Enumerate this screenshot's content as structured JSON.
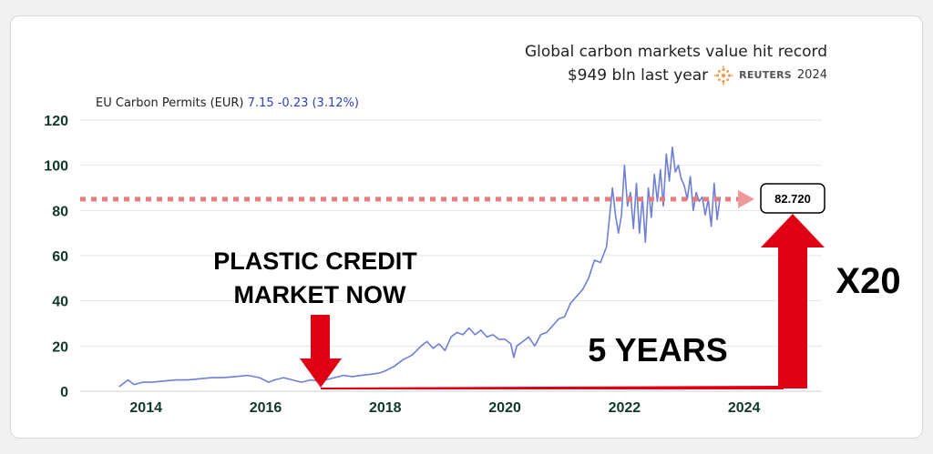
{
  "headline": {
    "line1": "Global carbon markets value hit record",
    "line2": "$949 bln last year",
    "source_brand": "REUTERS",
    "source_year": "2024"
  },
  "ticker": {
    "label": "EU Carbon Permits (EUR)",
    "quote": "7.15 -0.23 (3.12%)"
  },
  "callout": {
    "line1": "PLASTIC CREDIT",
    "line2": "MARKET NOW",
    "years": "5 YEARS",
    "multiplier": "X20",
    "value_box": "82.720"
  },
  "colors": {
    "line": "#6f7fd6",
    "dotted_ref": "#e87c7c",
    "arrow_red": "#e00013",
    "axis_text": "#103a27",
    "grid": "#e6e6e6"
  },
  "chart_data": {
    "type": "line",
    "x_ticks": [
      2014,
      2016,
      2018,
      2020,
      2022,
      2024
    ],
    "y_ticks": [
      0,
      20,
      40,
      60,
      80,
      100,
      120
    ],
    "xlim": [
      2012.9,
      2025.3
    ],
    "ylim": [
      0,
      120
    ],
    "grid": true,
    "reference_line": 85,
    "series": [
      {
        "name": "EU Carbon Permits (EUR)",
        "x": [
          2013.55,
          2013.7,
          2013.8,
          2013.95,
          2014.1,
          2014.3,
          2014.5,
          2014.7,
          2014.9,
          2015.1,
          2015.3,
          2015.5,
          2015.7,
          2015.9,
          2016.05,
          2016.15,
          2016.3,
          2016.45,
          2016.6,
          2016.75,
          2016.9,
          2017.0,
          2017.15,
          2017.3,
          2017.45,
          2017.6,
          2017.75,
          2017.9,
          2018.0,
          2018.15,
          2018.3,
          2018.45,
          2018.6,
          2018.7,
          2018.8,
          2018.9,
          2019.0,
          2019.1,
          2019.2,
          2019.3,
          2019.4,
          2019.5,
          2019.6,
          2019.7,
          2019.8,
          2019.9,
          2020.0,
          2020.1,
          2020.15,
          2020.2,
          2020.3,
          2020.4,
          2020.5,
          2020.6,
          2020.7,
          2020.8,
          2020.9,
          2021.0,
          2021.1,
          2021.2,
          2021.3,
          2021.4,
          2021.5,
          2021.6,
          2021.7,
          2021.8,
          2021.85,
          2021.9,
          2021.95,
          2022.0,
          2022.05,
          2022.1,
          2022.15,
          2022.2,
          2022.25,
          2022.3,
          2022.35,
          2022.4,
          2022.45,
          2022.5,
          2022.55,
          2022.6,
          2022.65,
          2022.7,
          2022.75,
          2022.8,
          2022.85,
          2022.9,
          2022.95,
          2023.0,
          2023.05,
          2023.1,
          2023.15,
          2023.2,
          2023.25,
          2023.3,
          2023.35,
          2023.4,
          2023.45,
          2023.5,
          2023.55,
          2023.6
        ],
        "values": [
          2,
          5,
          3,
          4,
          4,
          4.5,
          5,
          5,
          5.5,
          6,
          6,
          6.5,
          7,
          6,
          4,
          5,
          6,
          5,
          4,
          5,
          4.5,
          5,
          6,
          7,
          6.5,
          7,
          7.5,
          8,
          9,
          11,
          14,
          16,
          20,
          22,
          19,
          21,
          18,
          24,
          26,
          25,
          28,
          25,
          27,
          24,
          25,
          23,
          23,
          21,
          15,
          20,
          22,
          24,
          20,
          25,
          26,
          29,
          32,
          33,
          39,
          42,
          45,
          50,
          58,
          57,
          64,
          90,
          78,
          70,
          78,
          100,
          82,
          88,
          72,
          92,
          70,
          86,
          66,
          90,
          77,
          96,
          84,
          98,
          82,
          105,
          93,
          108,
          97,
          100,
          94,
          91,
          85,
          95,
          80,
          88,
          84,
          86,
          78,
          85,
          73,
          92,
          76,
          86
        ]
      }
    ]
  }
}
